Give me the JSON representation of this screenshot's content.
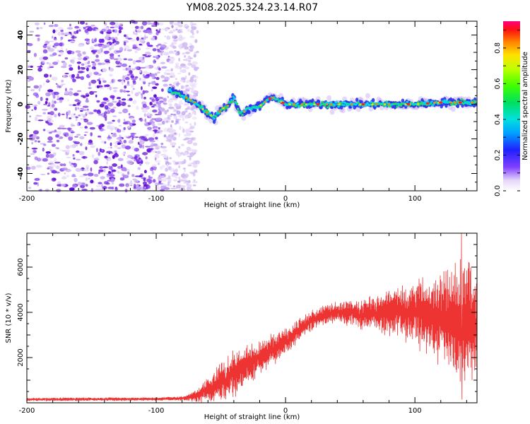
{
  "title": "YM08.2025.324.23.14.R07",
  "chart_data": [
    {
      "type": "heatmap",
      "name": "spectrogram",
      "xlabel": "Height of straight line (km)",
      "ylabel": "Frequency (Hz)",
      "xlim": [
        -200,
        148
      ],
      "ylim": [
        -50,
        48
      ],
      "x_ticks": [
        -200,
        -100,
        0,
        100
      ],
      "y_ticks": [
        -40,
        -20,
        0,
        20,
        40
      ],
      "noise_region_x": [
        -200,
        -68
      ],
      "signal_trace": {
        "x": [
          -90,
          -80,
          -70,
          -62,
          -55,
          -50,
          -45,
          -40,
          -35,
          -30,
          -20,
          -15,
          -10,
          0,
          20,
          40,
          60,
          80,
          100,
          120,
          140,
          148
        ],
        "y": [
          8,
          5,
          1,
          -4,
          -8,
          -3,
          -1,
          4,
          -6,
          -3,
          -1,
          2,
          4,
          0,
          0,
          0,
          0,
          0,
          0,
          1,
          1,
          1
        ],
        "peak_amplitude_x": [
          -12,
          -2,
          25,
          60,
          95,
          110,
          120,
          135
        ]
      },
      "colorbar": {
        "label": "Normalized spectral amplitude",
        "range": [
          0.0,
          0.95
        ],
        "ticks": [
          0.0,
          0.2,
          0.4,
          0.6,
          0.8
        ],
        "tick_labels": [
          "0.0",
          "0.2",
          "0.4",
          "0.6",
          "0.8"
        ]
      }
    },
    {
      "type": "line",
      "name": "snr",
      "xlabel": "Height of straight line (km)",
      "ylabel": "SNR (10 * v/v)",
      "xlim": [
        -200,
        148
      ],
      "ylim": [
        0,
        7500
      ],
      "x_ticks": [
        -200,
        -100,
        0,
        100
      ],
      "y_ticks": [
        2000,
        4000,
        6000
      ],
      "color": "#ee3333",
      "envelope": {
        "x": [
          -200,
          -150,
          -100,
          -80,
          -70,
          -60,
          -50,
          -40,
          -30,
          -20,
          -10,
          0,
          10,
          20,
          30,
          40,
          50,
          60,
          70,
          80,
          90,
          100,
          110,
          120,
          130,
          135,
          140,
          145,
          148
        ],
        "mean": [
          150,
          160,
          170,
          200,
          300,
          550,
          900,
          1300,
          1700,
          2000,
          2300,
          2700,
          3200,
          3600,
          3900,
          4000,
          4000,
          3900,
          3950,
          4000,
          4050,
          3950,
          3900,
          3800,
          3700,
          3650,
          3600,
          3500,
          3500
        ],
        "spread": [
          60,
          60,
          60,
          80,
          200,
          500,
          800,
          900,
          800,
          700,
          600,
          500,
          450,
          400,
          400,
          400,
          500,
          600,
          700,
          900,
          1100,
          1300,
          1500,
          1800,
          2100,
          2500,
          2600,
          2200,
          1900
        ]
      },
      "max_value": 7500,
      "max_value_x": 136,
      "min_tail_value": 150,
      "min_tail_x": 136
    }
  ]
}
